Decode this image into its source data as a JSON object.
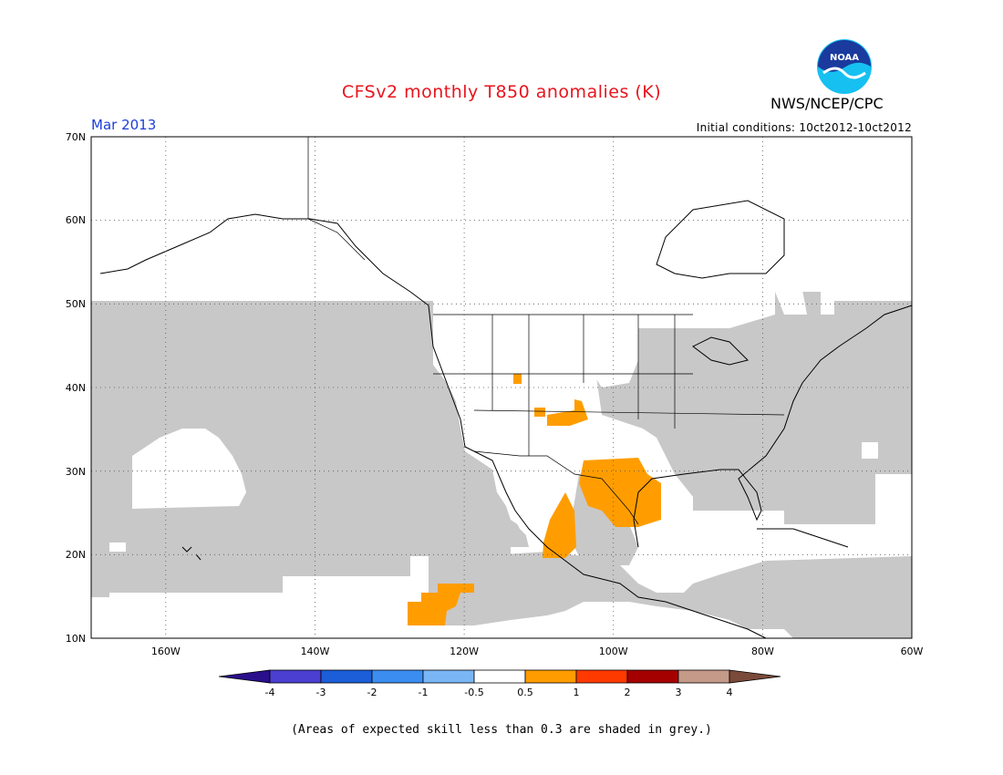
{
  "header": {
    "title": "CFSv2 monthly T850 anomalies (K)",
    "agency": "NWS/NCEP/CPC",
    "logo_text": "NOAA",
    "forecast_month": "Mar 2013",
    "initial_conditions": "Initial conditions: 10ct2012-10ct2012"
  },
  "map": {
    "lat_labels": [
      "70N",
      "60N",
      "50N",
      "40N",
      "30N",
      "20N",
      "10N"
    ],
    "lon_labels": [
      "160W",
      "140W",
      "120W",
      "100W",
      "80W",
      "60W"
    ],
    "grey_color": "#c8c8c8"
  },
  "colorbar": {
    "tick_labels": [
      "-4",
      "-3",
      "-2",
      "-1",
      "-0.5",
      "0.5",
      "1",
      "2",
      "3",
      "4"
    ],
    "colors": [
      "#2a0f8c",
      "#4b3fd0",
      "#1b5ed8",
      "#3b8ef0",
      "#7ab6f5",
      "#ffffff",
      "#ff9d00",
      "#ff3a00",
      "#a50000",
      "#c49a88",
      "#7a4a3a"
    ]
  },
  "footnote": "(Areas of expected skill less than 0.3 are shaded in grey.)"
}
